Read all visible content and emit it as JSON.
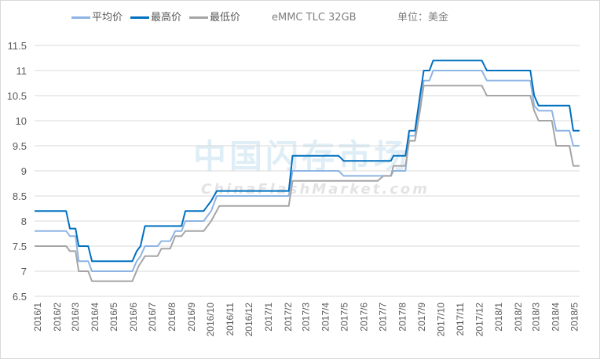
{
  "title": "eMMC TLC 32GB",
  "unit": "单位：美金",
  "watermark": {
    "cn": "中国闪存市场",
    "en": "ChinaFlashMarket.com"
  },
  "chart_data": {
    "type": "line",
    "title": "eMMC TLC 32GB",
    "ylim": [
      6.5,
      11.5
    ],
    "yticks": [
      "6.5",
      "7",
      "7.5",
      "8",
      "8.5",
      "9",
      "9.5",
      "10",
      "10.5",
      "11",
      "11.5"
    ],
    "xlim": [
      "2015-12-27",
      "2018-05-09"
    ],
    "xticks": [
      "2016/1",
      "2016/2",
      "2016/3",
      "2016/4",
      "2016/5",
      "2016/6",
      "2016/7",
      "2016/8",
      "2016/9",
      "2016/10",
      "2016/11",
      "2016/12",
      "2017/1",
      "2017/2",
      "2017/3",
      "2017/4",
      "2017/5",
      "2017/6",
      "2017/7",
      "2017/8",
      "2017/9",
      "2017/10",
      "2017/11",
      "2017/12",
      "2018/1",
      "2018/2",
      "2018/3",
      "2018/4",
      "2018/5"
    ],
    "grid": true,
    "legend": "top",
    "series": [
      {
        "name": "平均价",
        "color": "#8eb4e3",
        "points": [
          [
            "2015-12-27",
            7.8
          ],
          [
            "2016-02-15",
            7.8
          ],
          [
            "2016-02-21",
            7.7
          ],
          [
            "2016-03-01",
            7.7
          ],
          [
            "2016-03-06",
            7.2
          ],
          [
            "2016-03-21",
            7.2
          ],
          [
            "2016-03-27",
            7.0
          ],
          [
            "2016-05-30",
            7.0
          ],
          [
            "2016-06-06",
            7.2
          ],
          [
            "2016-06-12",
            7.3
          ],
          [
            "2016-06-19",
            7.5
          ],
          [
            "2016-07-09",
            7.5
          ],
          [
            "2016-07-15",
            7.6
          ],
          [
            "2016-07-29",
            7.6
          ],
          [
            "2016-08-06",
            7.8
          ],
          [
            "2016-08-16",
            7.8
          ],
          [
            "2016-08-22",
            8.0
          ],
          [
            "2016-09-20",
            8.0
          ],
          [
            "2016-10-02",
            8.2
          ],
          [
            "2016-10-11",
            8.5
          ],
          [
            "2017-02-02",
            8.5
          ],
          [
            "2017-02-08",
            9.0
          ],
          [
            "2017-04-22",
            9.0
          ],
          [
            "2017-04-30",
            8.9
          ],
          [
            "2017-07-14",
            8.9
          ],
          [
            "2017-07-18",
            9.0
          ],
          [
            "2017-08-06",
            9.0
          ],
          [
            "2017-08-12",
            9.7
          ],
          [
            "2017-08-21",
            9.7
          ],
          [
            "2017-08-29",
            10.3
          ],
          [
            "2017-09-04",
            10.8
          ],
          [
            "2017-09-13",
            10.8
          ],
          [
            "2017-09-19",
            11.0
          ],
          [
            "2017-12-05",
            11.0
          ],
          [
            "2017-12-13",
            10.8
          ],
          [
            "2018-02-20",
            10.8
          ],
          [
            "2018-02-26",
            10.3
          ],
          [
            "2018-03-05",
            10.2
          ],
          [
            "2018-03-26",
            10.2
          ],
          [
            "2018-04-02",
            9.8
          ],
          [
            "2018-04-23",
            9.8
          ],
          [
            "2018-04-29",
            9.5
          ],
          [
            "2018-05-09",
            9.5
          ]
        ]
      },
      {
        "name": "最高价",
        "color": "#0070c0",
        "points": [
          [
            "2015-12-27",
            8.2
          ],
          [
            "2016-02-15",
            8.2
          ],
          [
            "2016-02-21",
            7.85
          ],
          [
            "2016-03-01",
            7.85
          ],
          [
            "2016-03-06",
            7.5
          ],
          [
            "2016-03-21",
            7.5
          ],
          [
            "2016-03-27",
            7.2
          ],
          [
            "2016-05-30",
            7.2
          ],
          [
            "2016-06-06",
            7.4
          ],
          [
            "2016-06-12",
            7.5
          ],
          [
            "2016-06-19",
            7.9
          ],
          [
            "2016-08-16",
            7.9
          ],
          [
            "2016-08-22",
            8.2
          ],
          [
            "2016-09-20",
            8.2
          ],
          [
            "2016-10-02",
            8.4
          ],
          [
            "2016-10-11",
            8.6
          ],
          [
            "2017-02-02",
            8.6
          ],
          [
            "2017-02-08",
            9.3
          ],
          [
            "2017-04-22",
            9.3
          ],
          [
            "2017-04-30",
            9.2
          ],
          [
            "2017-07-14",
            9.2
          ],
          [
            "2017-07-18",
            9.3
          ],
          [
            "2017-08-06",
            9.3
          ],
          [
            "2017-08-12",
            9.8
          ],
          [
            "2017-08-21",
            9.8
          ],
          [
            "2017-08-29",
            10.5
          ],
          [
            "2017-09-04",
            11.0
          ],
          [
            "2017-09-13",
            11.0
          ],
          [
            "2017-09-19",
            11.2
          ],
          [
            "2017-12-05",
            11.2
          ],
          [
            "2017-12-13",
            11.0
          ],
          [
            "2018-02-20",
            11.0
          ],
          [
            "2018-02-26",
            10.5
          ],
          [
            "2018-03-05",
            10.3
          ],
          [
            "2018-04-23",
            10.3
          ],
          [
            "2018-04-29",
            9.8
          ],
          [
            "2018-05-09",
            9.8
          ]
        ]
      },
      {
        "name": "最低价",
        "color": "#a5a5a5",
        "points": [
          [
            "2015-12-27",
            7.5
          ],
          [
            "2016-02-15",
            7.5
          ],
          [
            "2016-02-21",
            7.4
          ],
          [
            "2016-03-01",
            7.4
          ],
          [
            "2016-03-06",
            7.0
          ],
          [
            "2016-03-21",
            7.0
          ],
          [
            "2016-03-27",
            6.8
          ],
          [
            "2016-05-30",
            6.8
          ],
          [
            "2016-06-09",
            7.1
          ],
          [
            "2016-06-19",
            7.3
          ],
          [
            "2016-07-09",
            7.3
          ],
          [
            "2016-07-15",
            7.45
          ],
          [
            "2016-07-29",
            7.45
          ],
          [
            "2016-08-06",
            7.7
          ],
          [
            "2016-08-16",
            7.7
          ],
          [
            "2016-08-22",
            7.8
          ],
          [
            "2016-09-20",
            7.8
          ],
          [
            "2016-10-02",
            8.0
          ],
          [
            "2016-10-15",
            8.3
          ],
          [
            "2017-02-02",
            8.3
          ],
          [
            "2017-02-08",
            8.8
          ],
          [
            "2017-06-23",
            8.8
          ],
          [
            "2017-07-02",
            8.9
          ],
          [
            "2017-07-14",
            8.9
          ],
          [
            "2017-07-18",
            9.1
          ],
          [
            "2017-08-06",
            9.1
          ],
          [
            "2017-08-12",
            9.6
          ],
          [
            "2017-08-21",
            9.6
          ],
          [
            "2017-08-29",
            10.2
          ],
          [
            "2017-09-04",
            10.7
          ],
          [
            "2017-12-05",
            10.7
          ],
          [
            "2017-12-13",
            10.5
          ],
          [
            "2018-02-20",
            10.5
          ],
          [
            "2018-02-26",
            10.2
          ],
          [
            "2018-03-05",
            10.0
          ],
          [
            "2018-03-26",
            10.0
          ],
          [
            "2018-04-02",
            9.5
          ],
          [
            "2018-04-23",
            9.5
          ],
          [
            "2018-04-29",
            9.1
          ],
          [
            "2018-05-09",
            9.1
          ]
        ]
      }
    ]
  }
}
